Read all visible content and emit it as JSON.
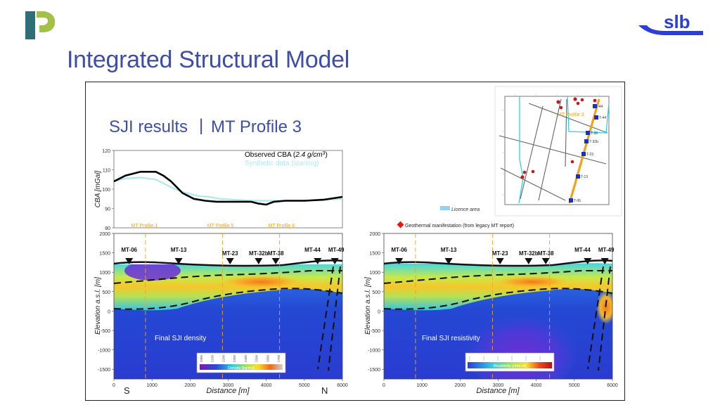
{
  "slide": {
    "title": "Integrated Structural Model",
    "brand_logo_text": "slb",
    "brand_color": "#2a3fd3",
    "left_logo_colors": [
      "#2f6f77",
      "#a3c14a"
    ]
  },
  "panel": {
    "heading_main": "SJI results",
    "heading_sep": "|",
    "heading_sub": "MT Profile 3",
    "legend_geothermal": "Geothermal manifestation (from legacy MT report)",
    "legend_licence": "Licence area",
    "map_profile_label": "MT Profile 3",
    "map_station_labels": [
      "-44",
      "T-44",
      "T-38",
      "T-32b",
      "T-23",
      "T-13",
      "T-06"
    ],
    "direction_south": "S",
    "direction_north": "N"
  },
  "chart_data": [
    {
      "type": "line",
      "title": "",
      "ylabel": "CBA [mGal]",
      "xlabel": "",
      "ylim": [
        80,
        120
      ],
      "xlim": [
        0,
        6000
      ],
      "yticks": [
        "120",
        "110",
        "100",
        "90",
        "80"
      ],
      "legend": [
        {
          "label": "Observed CBA (2.4 g/cm³)",
          "label_prefix": "Observed CBA (",
          "label_italic": "2.4 g/cm",
          "label_sup": "3",
          "label_suffix": ")",
          "color": "#000000"
        },
        {
          "label": "Synthetic data (starting)",
          "color": "#aee7ef"
        }
      ],
      "profile_markers": [
        "MT Profile 1",
        "MT Profile 5",
        "MT Profile 6"
      ],
      "profile_marker_x": [
        800,
        2800,
        4400
      ],
      "series": [
        {
          "name": "Observed CBA",
          "x": [
            0,
            300,
            700,
            1100,
            1300,
            1500,
            1800,
            2100,
            2400,
            2700,
            3000,
            3300,
            3600,
            3800,
            4000,
            4200,
            4500,
            5000,
            5500,
            6000
          ],
          "y": [
            104,
            107,
            109,
            109,
            107,
            104,
            98,
            95,
            94,
            93.5,
            93.5,
            93.5,
            93.5,
            92.5,
            92,
            93.5,
            94,
            94,
            94.5,
            96
          ]
        },
        {
          "name": "Synthetic data",
          "x": [
            0,
            300,
            700,
            1100,
            1300,
            1600,
            1900,
            2200,
            2500,
            2800,
            3200,
            3600,
            4000,
            4500,
            5000,
            5500,
            6000
          ],
          "y": [
            104,
            105.5,
            106,
            105,
            103,
            100,
            98,
            96.5,
            96,
            95,
            94.5,
            94,
            94,
            94,
            94,
            94.5,
            95
          ]
        }
      ]
    },
    {
      "type": "heatmap",
      "title": "Final SJI density",
      "xlabel": "Distance [m]",
      "ylabel": "Elevation a.s.l. [m]",
      "xlim": [
        0,
        6000
      ],
      "ylim": [
        -1750,
        2000
      ],
      "xticks": [
        "0",
        "1000",
        "2000",
        "3000",
        "4000",
        "5000",
        "6000"
      ],
      "yticks": [
        "2000",
        "1500",
        "1000",
        "500",
        "0",
        "-500",
        "-1000",
        "-1500"
      ],
      "colorbar_label": "Density [kg/m3]",
      "colorbar_ticks": [
        "2000",
        "2100",
        "2200",
        "2300",
        "2400",
        "2500",
        "2600",
        "2700"
      ],
      "stations": [
        {
          "name": "MT-06",
          "x": 400
        },
        {
          "name": "MT-13",
          "x": 1700
        },
        {
          "name": "MT-23",
          "x": 3050
        },
        {
          "name": "MT-32b",
          "x": 3800
        },
        {
          "name": "MT-38",
          "x": 4250
        },
        {
          "name": "MT-44",
          "x": 5350
        },
        {
          "name": "MT-49",
          "x": 5800
        }
      ]
    },
    {
      "type": "heatmap",
      "title": "Final SJI resistivity",
      "xlabel": "Distance [m]",
      "ylabel": "Elevation a.s.l. [m]",
      "xlim": [
        0,
        6000
      ],
      "ylim": [
        -1750,
        2000
      ],
      "xticks": [
        "0",
        "1000",
        "2000",
        "3000",
        "4000",
        "5000",
        "6000"
      ],
      "yticks": [
        "2000",
        "1500",
        "1000",
        "500",
        "0",
        "-500",
        "-1000",
        "-1500"
      ],
      "colorbar_label": "Resistivity [ohm.m]",
      "stations": [
        {
          "name": "MT-06",
          "x": 400
        },
        {
          "name": "MT-13",
          "x": 1700
        },
        {
          "name": "MT-23",
          "x": 3050
        },
        {
          "name": "MT-32b",
          "x": 3800
        },
        {
          "name": "MT-38",
          "x": 4250
        },
        {
          "name": "MT-44",
          "x": 5350
        },
        {
          "name": "MT-49",
          "x": 5800
        }
      ]
    }
  ]
}
